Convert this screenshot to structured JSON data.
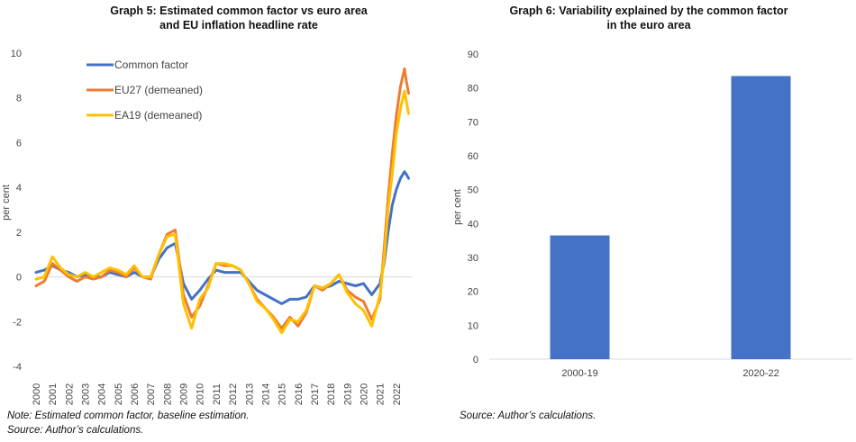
{
  "chart_data": [
    {
      "type": "line",
      "title": "Graph 5: Estimated common factor vs euro area and EU inflation headline rate",
      "title_lines": [
        "Graph 5: Estimated common factor vs euro area",
        "and EU inflation headline rate"
      ],
      "ylabel": "per cent",
      "ylim": [
        -4,
        10
      ],
      "yticks": [
        "-4",
        "-2",
        "0",
        "2",
        "4",
        "6",
        "8",
        "10"
      ],
      "xlim": [
        2000,
        2023
      ],
      "x_tick_labels": [
        "2000",
        "2001",
        "2002",
        "2003",
        "2004",
        "2005",
        "2006",
        "2007",
        "2008",
        "2009",
        "2010",
        "2011",
        "2012",
        "2013",
        "2014",
        "2015",
        "2016",
        "2017",
        "2018",
        "2019",
        "2020",
        "2021",
        "2022"
      ],
      "legend_position": "top-left",
      "grid": false,
      "x": [
        2000.0,
        2000.5,
        2001.0,
        2001.5,
        2002.0,
        2002.5,
        2003.0,
        2003.5,
        2004.0,
        2004.5,
        2005.0,
        2005.5,
        2006.0,
        2006.5,
        2007.0,
        2007.5,
        2008.0,
        2008.5,
        2009.0,
        2009.5,
        2010.0,
        2010.5,
        2011.0,
        2011.5,
        2012.0,
        2012.5,
        2013.0,
        2013.5,
        2014.0,
        2014.5,
        2015.0,
        2015.5,
        2016.0,
        2016.5,
        2017.0,
        2017.5,
        2018.0,
        2018.5,
        2019.0,
        2019.5,
        2020.0,
        2020.5,
        2021.0,
        2021.25,
        2021.5,
        2021.75,
        2022.0,
        2022.25,
        2022.5,
        2022.6,
        2022.75
      ],
      "series": [
        {
          "name": "Common factor",
          "color": "#4472C4",
          "values": [
            0.2,
            0.3,
            0.5,
            0.3,
            0.2,
            0.0,
            0.1,
            0.0,
            0.0,
            0.2,
            0.1,
            0.0,
            0.2,
            0.0,
            0.0,
            0.8,
            1.3,
            1.5,
            -0.3,
            -1.0,
            -0.6,
            -0.1,
            0.3,
            0.2,
            0.2,
            0.2,
            -0.2,
            -0.6,
            -0.8,
            -1.0,
            -1.2,
            -1.0,
            -1.0,
            -0.9,
            -0.4,
            -0.5,
            -0.4,
            -0.2,
            -0.3,
            -0.4,
            -0.3,
            -0.8,
            -0.3,
            0.6,
            2.0,
            3.2,
            3.9,
            4.4,
            4.7,
            4.6,
            4.4
          ]
        },
        {
          "name": "EU27 (demeaned)",
          "color": "#ED7D31",
          "values": [
            -0.4,
            -0.2,
            0.6,
            0.3,
            0.0,
            -0.2,
            0.0,
            -0.1,
            0.0,
            0.3,
            0.2,
            0.0,
            0.4,
            0.0,
            -0.1,
            1.0,
            1.9,
            2.1,
            -0.8,
            -1.8,
            -1.3,
            -0.4,
            0.6,
            0.5,
            0.5,
            0.3,
            -0.3,
            -1.0,
            -1.4,
            -1.8,
            -2.3,
            -1.8,
            -2.2,
            -1.6,
            -0.4,
            -0.6,
            -0.3,
            0.1,
            -0.6,
            -0.9,
            -1.1,
            -1.9,
            -1.0,
            1.2,
            3.5,
            5.5,
            7.2,
            8.5,
            9.3,
            8.8,
            8.2
          ]
        },
        {
          "name": "EA19 (demeaned)",
          "color": "#FFC000",
          "values": [
            -0.1,
            0.0,
            0.9,
            0.4,
            0.1,
            0.0,
            0.2,
            0.0,
            0.2,
            0.4,
            0.3,
            0.1,
            0.5,
            0.0,
            0.0,
            1.0,
            1.8,
            1.9,
            -1.2,
            -2.3,
            -1.0,
            -0.5,
            0.6,
            0.6,
            0.5,
            0.3,
            -0.3,
            -1.1,
            -1.4,
            -1.9,
            -2.5,
            -1.9,
            -2.0,
            -1.5,
            -0.4,
            -0.5,
            -0.3,
            0.1,
            -0.7,
            -1.2,
            -1.5,
            -2.2,
            -0.8,
            0.8,
            3.0,
            4.6,
            6.4,
            7.5,
            8.3,
            7.9,
            7.3
          ]
        }
      ]
    },
    {
      "type": "bar",
      "title": "Graph 6: Variability explained by the common factor in the euro area",
      "title_lines": [
        "Graph 6: Variability explained by the common factor",
        "in the euro area"
      ],
      "ylabel": "per cent",
      "ylim": [
        0,
        90
      ],
      "yticks": [
        "0",
        "10",
        "20",
        "30",
        "40",
        "50",
        "60",
        "70",
        "80",
        "90"
      ],
      "categories": [
        "2000-19",
        "2020-22"
      ],
      "values": [
        36.5,
        83.5
      ],
      "color": "#4472C4",
      "grid": false
    }
  ],
  "notes": {
    "left_note": "Note: Estimated common factor, baseline estimation.",
    "left_source": "Source: Author’s calculations.",
    "right_source": "Source: Author’s calculations."
  }
}
